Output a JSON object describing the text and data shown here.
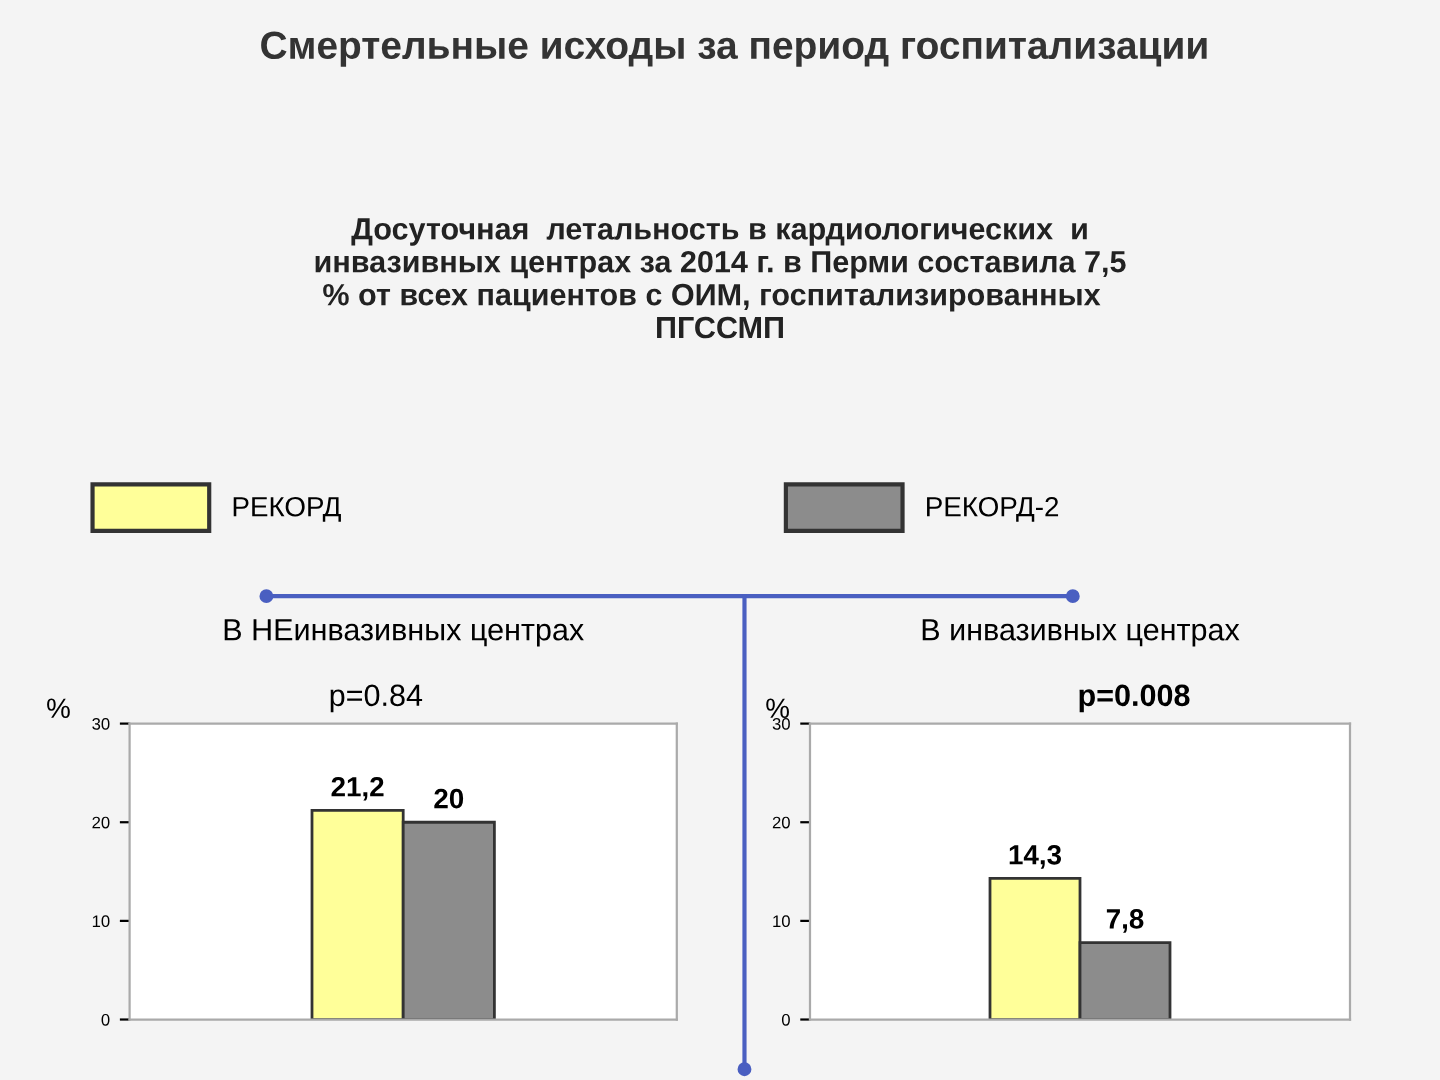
{
  "chart_data": [
    {
      "type": "bar",
      "title": "В НЕинвазивных центрах",
      "ylabel": "%",
      "annotations": [
        "Смертельные исходы за период госпитализации",
        "Досуточная  летальность в кардиологических  и инвазивных центрах за 2014 г. в Перми составила 7,5 % от всех пациентов с ОИМ, госпитализированных   ПГССМП",
        "p=0.84"
      ],
      "categories": [
        null
      ],
      "series": [
        {
          "name": "РЕКОРД",
          "color": "#ffff99",
          "values": [
            21.2
          ],
          "value_labels": [
            "21,2"
          ]
        },
        {
          "name": "РЕКОРД-2",
          "color": "#8c8c8c",
          "values": [
            20
          ],
          "value_labels": [
            "20"
          ]
        }
      ],
      "ylim": [
        0,
        30
      ],
      "yticks": [
        0,
        10,
        20,
        30
      ],
      "grid": false,
      "legend": "top"
    },
    {
      "type": "bar",
      "title": "В инвазивных центрах",
      "ylabel": "%",
      "annotations": [
        "p=0.008"
      ],
      "categories": [
        null
      ],
      "series": [
        {
          "color": "#ffff99",
          "values": [
            14.3
          ],
          "value_labels": [
            "14,3"
          ]
        },
        {
          "color": "#8c8c8c",
          "values": [
            7.8
          ],
          "value_labels": [
            "7,8"
          ]
        }
      ],
      "ylim": [
        0,
        30
      ],
      "yticks": [
        0,
        10,
        20,
        30
      ],
      "grid": false
    }
  ]
}
